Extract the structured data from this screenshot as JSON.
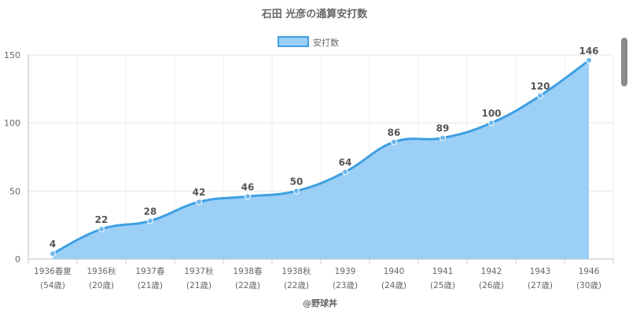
{
  "chart_data": {
    "type": "area",
    "title": "石田 光彦の通算安打数",
    "legend": {
      "label": "安打数",
      "placement": "top"
    },
    "categories": [
      [
        "1936春夏",
        "(54歳)"
      ],
      [
        "1936秋",
        "(20歳)"
      ],
      [
        "1937春",
        "(21歳)"
      ],
      [
        "1937秋",
        "(21歳)"
      ],
      [
        "1938春",
        "(22歳)"
      ],
      [
        "1938秋",
        "(22歳)"
      ],
      [
        "1939",
        "(23歳)"
      ],
      [
        "1940",
        "(24歳)"
      ],
      [
        "1941",
        "(25歳)"
      ],
      [
        "1942",
        "(26歳)"
      ],
      [
        "1943",
        "(27歳)"
      ],
      [
        "1946",
        "(30歳)"
      ]
    ],
    "series": [
      {
        "name": "安打数",
        "values": [
          4,
          22,
          28,
          42,
          46,
          50,
          64,
          86,
          89,
          100,
          120,
          146
        ]
      }
    ],
    "ylim": [
      0,
      150
    ],
    "yticks": [
      0,
      50,
      100,
      150
    ],
    "grid": true,
    "colors": {
      "line": "#3d9fe3",
      "fill": "#9ccff5",
      "point": "#6fb8ec",
      "label": "#555555"
    }
  },
  "footer": {
    "credit": "@野球丼"
  }
}
